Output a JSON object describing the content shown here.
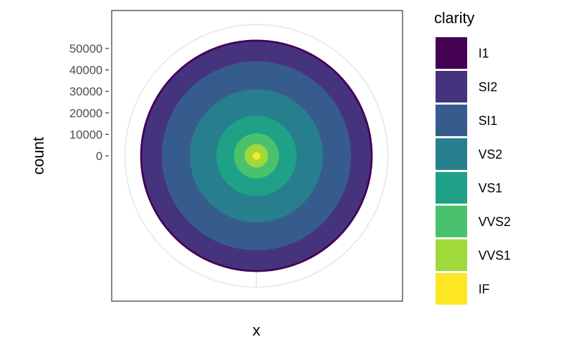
{
  "chart_data": {
    "type": "bar",
    "coord": "polar (stacked bar, theta = count)",
    "xlabel": "x",
    "ylabel": "count",
    "y_ticks": [
      0,
      10000,
      20000,
      30000,
      40000,
      50000
    ],
    "y_tick_labels": [
      "0",
      "10000",
      "20000",
      "30000",
      "40000",
      "50000"
    ],
    "ylim": [
      0,
      53940
    ],
    "legend_title": "clarity",
    "legend_position": "right",
    "series": [
      {
        "name": "I1",
        "value": 741,
        "color": "#440154"
      },
      {
        "name": "SI2",
        "value": 9194,
        "color": "#46337E"
      },
      {
        "name": "SI1",
        "value": 13065,
        "color": "#365C8D"
      },
      {
        "name": "VS2",
        "value": 12258,
        "color": "#277F8E"
      },
      {
        "name": "VS1",
        "value": 8171,
        "color": "#1FA187"
      },
      {
        "name": "VVS2",
        "value": 5066,
        "color": "#4AC16D"
      },
      {
        "name": "VVS1",
        "value": 3655,
        "color": "#9FDA3A"
      },
      {
        "name": "IF",
        "value": 1790,
        "color": "#FDE725"
      }
    ]
  }
}
